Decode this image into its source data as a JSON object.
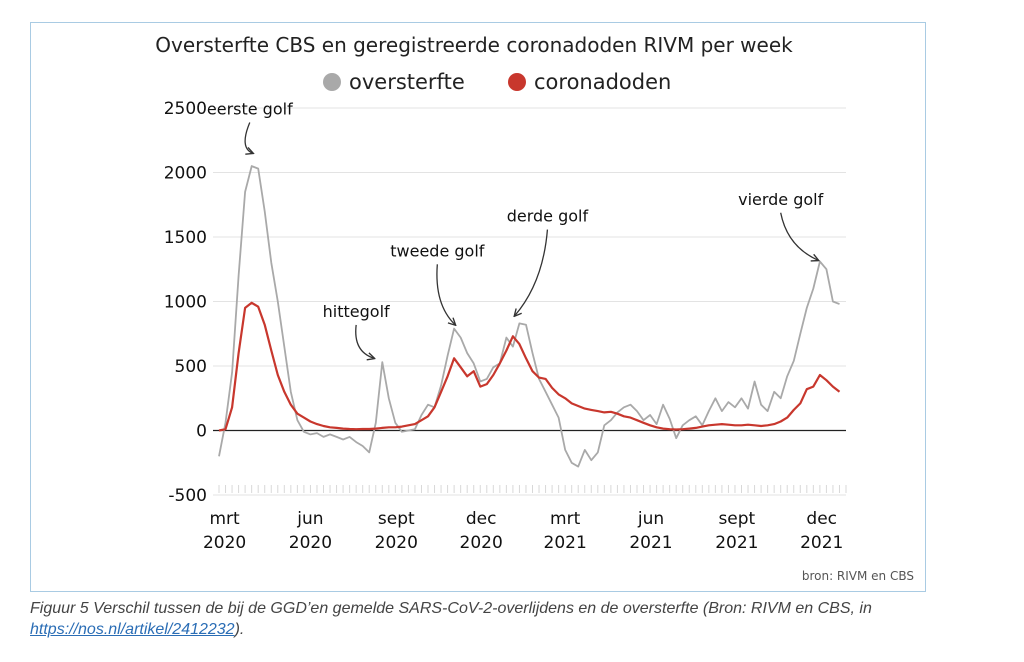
{
  "chart_data": {
    "type": "line",
    "title": "Oversterfte CBS en geregistreerde coronadoden RIVM per week",
    "legend": {
      "position": "top-center"
    },
    "ylim": [
      -500,
      2500
    ],
    "yticks": [
      2500,
      2000,
      1500,
      1000,
      500,
      0,
      -500
    ],
    "xlim": [
      "2020-02-24",
      "2021-12-27"
    ],
    "xticks": [
      {
        "date": "2020-03-01",
        "label1": "mrt",
        "label2": "2020"
      },
      {
        "date": "2020-06-01",
        "label1": "jun",
        "label2": "2020"
      },
      {
        "date": "2020-09-01",
        "label1": "sept",
        "label2": "2020"
      },
      {
        "date": "2020-12-01",
        "label1": "dec",
        "label2": "2020"
      },
      {
        "date": "2021-03-01",
        "label1": "mrt",
        "label2": "2021"
      },
      {
        "date": "2021-06-01",
        "label1": "jun",
        "label2": "2021"
      },
      {
        "date": "2021-09-01",
        "label1": "sept",
        "label2": "2021"
      },
      {
        "date": "2021-12-01",
        "label1": "dec",
        "label2": "2021"
      }
    ],
    "grid": true,
    "series": [
      {
        "name": "oversterfte",
        "color": "#a9a9a9",
        "points": [
          [
            "2020-02-24",
            -200
          ],
          [
            "2020-03-02",
            60
          ],
          [
            "2020-03-09",
            450
          ],
          [
            "2020-03-16",
            1200
          ],
          [
            "2020-03-23",
            1850
          ],
          [
            "2020-03-30",
            2050
          ],
          [
            "2020-04-06",
            2030
          ],
          [
            "2020-04-13",
            1700
          ],
          [
            "2020-04-20",
            1300
          ],
          [
            "2020-04-27",
            1000
          ],
          [
            "2020-05-04",
            650
          ],
          [
            "2020-05-11",
            300
          ],
          [
            "2020-05-18",
            80
          ],
          [
            "2020-05-25",
            -10
          ],
          [
            "2020-06-01",
            -30
          ],
          [
            "2020-06-08",
            -20
          ],
          [
            "2020-06-15",
            -50
          ],
          [
            "2020-06-22",
            -30
          ],
          [
            "2020-06-29",
            -50
          ],
          [
            "2020-07-06",
            -70
          ],
          [
            "2020-07-13",
            -50
          ],
          [
            "2020-07-20",
            -90
          ],
          [
            "2020-07-27",
            -120
          ],
          [
            "2020-08-03",
            -170
          ],
          [
            "2020-08-10",
            60
          ],
          [
            "2020-08-17",
            530
          ],
          [
            "2020-08-24",
            250
          ],
          [
            "2020-08-31",
            60
          ],
          [
            "2020-09-07",
            -10
          ],
          [
            "2020-09-14",
            0
          ],
          [
            "2020-09-21",
            10
          ],
          [
            "2020-09-28",
            120
          ],
          [
            "2020-10-05",
            200
          ],
          [
            "2020-10-12",
            180
          ],
          [
            "2020-10-19",
            350
          ],
          [
            "2020-10-26",
            580
          ],
          [
            "2020-11-02",
            790
          ],
          [
            "2020-11-09",
            720
          ],
          [
            "2020-11-16",
            600
          ],
          [
            "2020-11-23",
            520
          ],
          [
            "2020-11-30",
            380
          ],
          [
            "2020-12-07",
            400
          ],
          [
            "2020-12-14",
            490
          ],
          [
            "2020-12-21",
            520
          ],
          [
            "2020-12-28",
            720
          ],
          [
            "2021-01-04",
            650
          ],
          [
            "2021-01-11",
            830
          ],
          [
            "2021-01-18",
            820
          ],
          [
            "2021-01-25",
            600
          ],
          [
            "2021-02-01",
            400
          ],
          [
            "2021-02-08",
            300
          ],
          [
            "2021-02-15",
            200
          ],
          [
            "2021-02-22",
            100
          ],
          [
            "2021-03-01",
            -150
          ],
          [
            "2021-03-08",
            -250
          ],
          [
            "2021-03-15",
            -280
          ],
          [
            "2021-03-22",
            -150
          ],
          [
            "2021-03-29",
            -230
          ],
          [
            "2021-04-05",
            -170
          ],
          [
            "2021-04-12",
            40
          ],
          [
            "2021-04-19",
            80
          ],
          [
            "2021-04-26",
            140
          ],
          [
            "2021-05-03",
            180
          ],
          [
            "2021-05-10",
            200
          ],
          [
            "2021-05-17",
            150
          ],
          [
            "2021-05-24",
            80
          ],
          [
            "2021-05-31",
            120
          ],
          [
            "2021-06-07",
            50
          ],
          [
            "2021-06-14",
            200
          ],
          [
            "2021-06-21",
            90
          ],
          [
            "2021-06-28",
            -60
          ],
          [
            "2021-07-05",
            40
          ],
          [
            "2021-07-12",
            80
          ],
          [
            "2021-07-19",
            110
          ],
          [
            "2021-07-26",
            40
          ],
          [
            "2021-08-02",
            150
          ],
          [
            "2021-08-09",
            250
          ],
          [
            "2021-08-16",
            150
          ],
          [
            "2021-08-23",
            220
          ],
          [
            "2021-08-30",
            180
          ],
          [
            "2021-09-06",
            250
          ],
          [
            "2021-09-13",
            170
          ],
          [
            "2021-09-20",
            380
          ],
          [
            "2021-09-27",
            200
          ],
          [
            "2021-10-04",
            150
          ],
          [
            "2021-10-11",
            300
          ],
          [
            "2021-10-18",
            250
          ],
          [
            "2021-10-25",
            420
          ],
          [
            "2021-11-01",
            540
          ],
          [
            "2021-11-08",
            750
          ],
          [
            "2021-11-15",
            950
          ],
          [
            "2021-11-22",
            1100
          ],
          [
            "2021-11-29",
            1310
          ],
          [
            "2021-12-06",
            1250
          ],
          [
            "2021-12-13",
            1000
          ],
          [
            "2021-12-20",
            980
          ]
        ]
      },
      {
        "name": "coronadoden",
        "color": "#c8372d",
        "points": [
          [
            "2020-02-24",
            0
          ],
          [
            "2020-03-02",
            10
          ],
          [
            "2020-03-09",
            180
          ],
          [
            "2020-03-16",
            600
          ],
          [
            "2020-03-23",
            950
          ],
          [
            "2020-03-30",
            990
          ],
          [
            "2020-04-06",
            960
          ],
          [
            "2020-04-13",
            820
          ],
          [
            "2020-04-20",
            620
          ],
          [
            "2020-04-27",
            430
          ],
          [
            "2020-05-04",
            300
          ],
          [
            "2020-05-11",
            200
          ],
          [
            "2020-05-18",
            130
          ],
          [
            "2020-05-25",
            100
          ],
          [
            "2020-06-01",
            70
          ],
          [
            "2020-06-08",
            50
          ],
          [
            "2020-06-15",
            35
          ],
          [
            "2020-06-22",
            25
          ],
          [
            "2020-06-29",
            20
          ],
          [
            "2020-07-06",
            15
          ],
          [
            "2020-07-13",
            12
          ],
          [
            "2020-07-20",
            10
          ],
          [
            "2020-07-27",
            12
          ],
          [
            "2020-08-03",
            12
          ],
          [
            "2020-08-10",
            15
          ],
          [
            "2020-08-17",
            20
          ],
          [
            "2020-08-24",
            25
          ],
          [
            "2020-08-31",
            25
          ],
          [
            "2020-09-07",
            30
          ],
          [
            "2020-09-14",
            40
          ],
          [
            "2020-09-21",
            50
          ],
          [
            "2020-09-28",
            80
          ],
          [
            "2020-10-05",
            110
          ],
          [
            "2020-10-12",
            180
          ],
          [
            "2020-10-19",
            300
          ],
          [
            "2020-10-26",
            420
          ],
          [
            "2020-11-02",
            560
          ],
          [
            "2020-11-09",
            490
          ],
          [
            "2020-11-16",
            420
          ],
          [
            "2020-11-23",
            460
          ],
          [
            "2020-11-30",
            340
          ],
          [
            "2020-12-07",
            360
          ],
          [
            "2020-12-14",
            430
          ],
          [
            "2020-12-21",
            520
          ],
          [
            "2020-12-28",
            620
          ],
          [
            "2021-01-04",
            730
          ],
          [
            "2021-01-11",
            670
          ],
          [
            "2021-01-18",
            560
          ],
          [
            "2021-01-25",
            460
          ],
          [
            "2021-02-01",
            410
          ],
          [
            "2021-02-08",
            400
          ],
          [
            "2021-02-15",
            330
          ],
          [
            "2021-02-22",
            280
          ],
          [
            "2021-03-01",
            250
          ],
          [
            "2021-03-08",
            210
          ],
          [
            "2021-03-15",
            190
          ],
          [
            "2021-03-22",
            170
          ],
          [
            "2021-03-29",
            160
          ],
          [
            "2021-04-05",
            150
          ],
          [
            "2021-04-12",
            140
          ],
          [
            "2021-04-19",
            145
          ],
          [
            "2021-04-26",
            130
          ],
          [
            "2021-05-03",
            110
          ],
          [
            "2021-05-10",
            100
          ],
          [
            "2021-05-17",
            80
          ],
          [
            "2021-05-24",
            60
          ],
          [
            "2021-05-31",
            40
          ],
          [
            "2021-06-07",
            25
          ],
          [
            "2021-06-14",
            15
          ],
          [
            "2021-06-21",
            10
          ],
          [
            "2021-06-28",
            8
          ],
          [
            "2021-07-05",
            10
          ],
          [
            "2021-07-12",
            15
          ],
          [
            "2021-07-19",
            20
          ],
          [
            "2021-07-26",
            30
          ],
          [
            "2021-08-02",
            40
          ],
          [
            "2021-08-09",
            45
          ],
          [
            "2021-08-16",
            50
          ],
          [
            "2021-08-23",
            45
          ],
          [
            "2021-08-30",
            40
          ],
          [
            "2021-09-06",
            40
          ],
          [
            "2021-09-13",
            45
          ],
          [
            "2021-09-20",
            40
          ],
          [
            "2021-09-27",
            35
          ],
          [
            "2021-10-04",
            40
          ],
          [
            "2021-10-11",
            50
          ],
          [
            "2021-10-18",
            70
          ],
          [
            "2021-10-25",
            100
          ],
          [
            "2021-11-01",
            160
          ],
          [
            "2021-11-08",
            210
          ],
          [
            "2021-11-15",
            320
          ],
          [
            "2021-11-22",
            340
          ],
          [
            "2021-11-29",
            430
          ],
          [
            "2021-12-06",
            390
          ],
          [
            "2021-12-13",
            340
          ],
          [
            "2021-12-20",
            300
          ]
        ]
      }
    ],
    "annotations": [
      {
        "text": "eerste golf",
        "date": "2020-03-28",
        "value": 2450,
        "arrow_to": [
          "2020-03-31",
          2150
        ]
      },
      {
        "text": "hittegolf",
        "date": "2020-07-20",
        "value": 880,
        "arrow_to": [
          "2020-08-08",
          560
        ]
      },
      {
        "text": "tweede golf",
        "date": "2020-10-15",
        "value": 1350,
        "arrow_to": [
          "2020-11-03",
          820
        ]
      },
      {
        "text": "derde golf",
        "date": "2021-02-10",
        "value": 1620,
        "arrow_to": [
          "2021-01-06",
          890
        ]
      },
      {
        "text": "vierde golf",
        "date": "2021-10-18",
        "value": 1750,
        "arrow_to": [
          "2021-11-27",
          1320
        ]
      }
    ],
    "source": "bron: RIVM en CBS"
  },
  "caption": {
    "text": "Figuur 5 Verschil tussen de bij de GGD’en gemelde SARS-CoV-2-overlijdens en de oversterfte (Bron: RIVM en CBS, in ",
    "link": "https://nos.nl/artikel/2412232",
    "suffix": ")."
  }
}
